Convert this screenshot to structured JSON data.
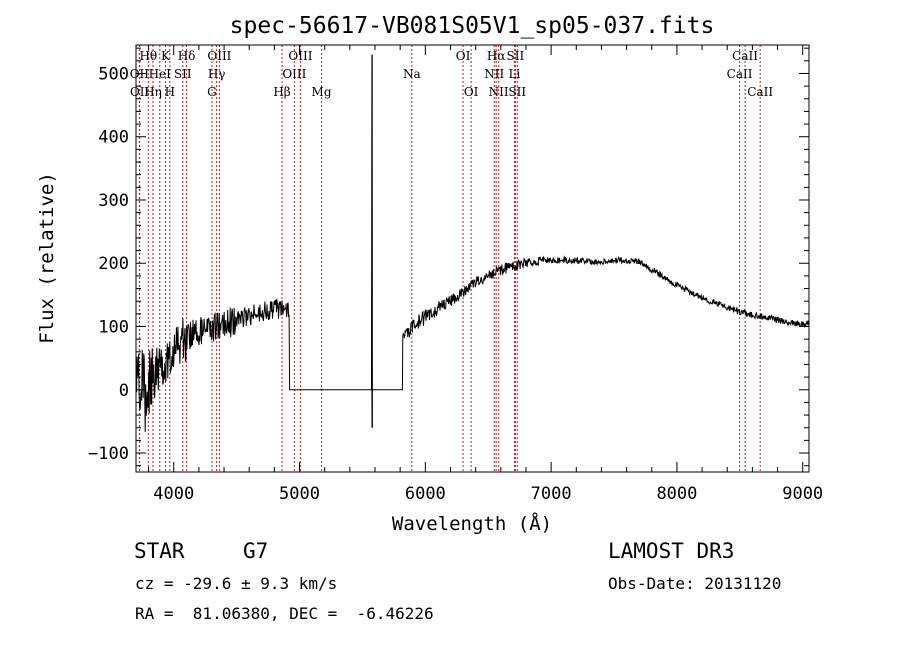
{
  "chart_data": {
    "type": "line",
    "title": "spec-56617-VB081S05V1_sp05-037.fits",
    "xlabel": "Wavelength (Å)",
    "ylabel": "Flux (relative)",
    "xlim": [
      3700,
      9050
    ],
    "ylim": [
      -130,
      545
    ],
    "x_ticks": [
      4000,
      5000,
      6000,
      7000,
      8000,
      9000
    ],
    "y_ticks": [
      -100,
      0,
      100,
      200,
      300,
      400,
      500
    ],
    "x_minor_step": 200,
    "y_minor_step": 20,
    "grid": false,
    "line_color": "#000000",
    "marker_color": "#b22222",
    "continuum": [
      [
        3700,
        0
      ],
      [
        3760,
        10
      ],
      [
        3850,
        25
      ],
      [
        3950,
        55
      ],
      [
        4050,
        80
      ],
      [
        4150,
        90
      ],
      [
        4250,
        95
      ],
      [
        4350,
        100
      ],
      [
        4500,
        110
      ],
      [
        4650,
        120
      ],
      [
        4800,
        127
      ],
      [
        4900,
        130
      ],
      [
        5830,
        80
      ],
      [
        5900,
        100
      ],
      [
        6000,
        115
      ],
      [
        6100,
        130
      ],
      [
        6200,
        140
      ],
      [
        6300,
        155
      ],
      [
        6400,
        170
      ],
      [
        6500,
        180
      ],
      [
        6600,
        190
      ],
      [
        6700,
        195
      ],
      [
        6800,
        200
      ],
      [
        6900,
        205
      ],
      [
        7000,
        205
      ],
      [
        7100,
        205
      ],
      [
        7200,
        204
      ],
      [
        7300,
        203
      ],
      [
        7400,
        203
      ],
      [
        7500,
        204
      ],
      [
        7600,
        205
      ],
      [
        7700,
        203
      ],
      [
        7800,
        190
      ],
      [
        7900,
        178
      ],
      [
        8000,
        165
      ],
      [
        8100,
        155
      ],
      [
        8200,
        145
      ],
      [
        8300,
        138
      ],
      [
        8400,
        130
      ],
      [
        8500,
        123
      ],
      [
        8600,
        118
      ],
      [
        8700,
        115
      ],
      [
        8800,
        110
      ],
      [
        8900,
        106
      ],
      [
        9000,
        104
      ]
    ],
    "gap": {
      "from": 4920,
      "to": 5820,
      "flux": 0,
      "spike_wavelength": 5577,
      "spike_max": 530,
      "spike_min": -60
    },
    "line_markers": [
      {
        "label": "Hθ",
        "wavelength": 3798,
        "row": 0
      },
      {
        "label": "OII",
        "wavelength": 3727,
        "row": 1
      },
      {
        "label": "OII",
        "wavelength": 3729,
        "row": 2
      },
      {
        "label": "Hη",
        "wavelength": 3835,
        "row": 2
      },
      {
        "label": "HeI",
        "wavelength": 3889,
        "row": 1
      },
      {
        "label": "K",
        "wavelength": 3934,
        "row": 0
      },
      {
        "label": "H",
        "wavelength": 3969,
        "row": 2
      },
      {
        "label": "SII",
        "wavelength": 4072,
        "row": 1
      },
      {
        "label": "Hδ",
        "wavelength": 4102,
        "row": 0
      },
      {
        "label": "G",
        "wavelength": 4304,
        "row": 2
      },
      {
        "label": "Hγ",
        "wavelength": 4341,
        "row": 1
      },
      {
        "label": "OIII",
        "wavelength": 4363,
        "row": 0
      },
      {
        "label": "Hβ",
        "wavelength": 4861,
        "row": 2
      },
      {
        "label": "OIII",
        "wavelength": 4959,
        "row": 1
      },
      {
        "label": "OIII",
        "wavelength": 5007,
        "row": 0
      },
      {
        "label": "Mg",
        "wavelength": 5175,
        "row": 2
      },
      {
        "label": "Na",
        "wavelength": 5893,
        "row": 1
      },
      {
        "label": "OI",
        "wavelength": 6300,
        "row": 0
      },
      {
        "label": "OI",
        "wavelength": 6364,
        "row": 2
      },
      {
        "label": "NII",
        "wavelength": 6548,
        "row": 1
      },
      {
        "label": "Hα",
        "wavelength": 6563,
        "row": 0
      },
      {
        "label": "NII",
        "wavelength": 6583,
        "row": 2
      },
      {
        "label": "Li",
        "wavelength": 6708,
        "row": 1
      },
      {
        "label": "SII",
        "wavelength": 6716,
        "row": 0
      },
      {
        "label": "SII",
        "wavelength": 6731,
        "row": 2
      },
      {
        "label": "CaII",
        "wavelength": 8498,
        "row": 1
      },
      {
        "label": "CaII",
        "wavelength": 8542,
        "row": 0
      },
      {
        "label": "CaII",
        "wavelength": 8662,
        "row": 2
      }
    ]
  },
  "info": {
    "object_class": "STAR",
    "subclass": "G7",
    "survey": "LAMOST DR3",
    "cz": "cz = -29.6 ± 9.3 km/s",
    "obs_date": "Obs-Date: 20131120",
    "coords": "RA =  81.06380, DEC =  -6.46226"
  }
}
